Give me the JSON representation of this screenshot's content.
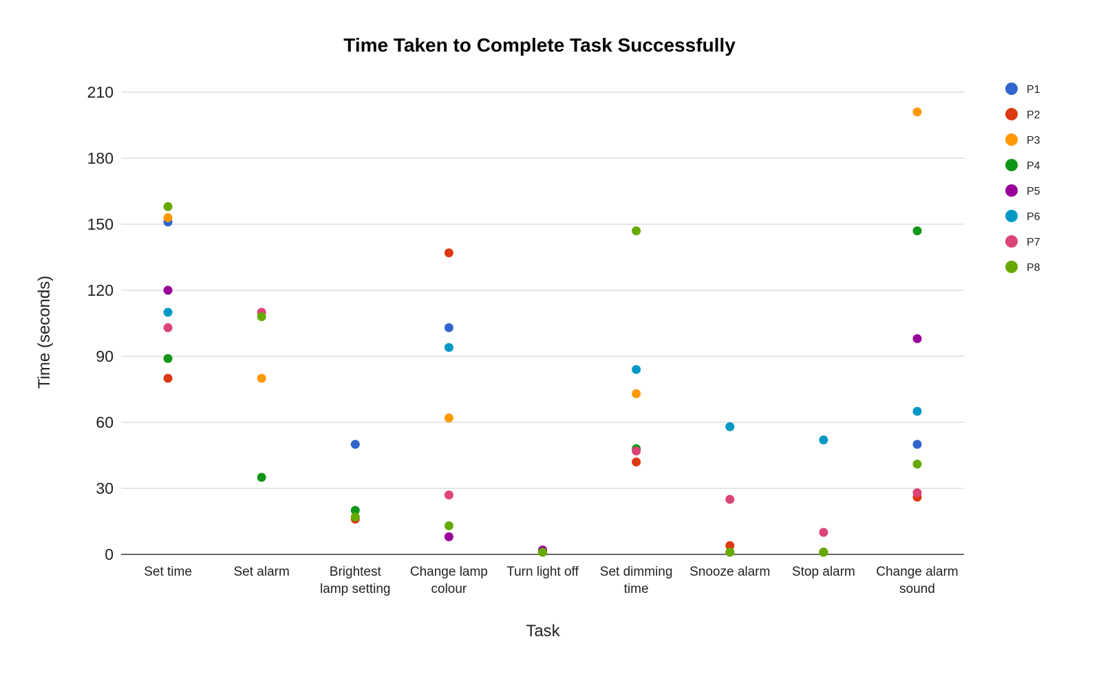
{
  "chart_data": {
    "type": "scatter",
    "title": "Time Taken to Complete Task Successfully",
    "xlabel": "Task",
    "ylabel": "Time (seconds)",
    "ylim": [
      0,
      210
    ],
    "yticks": [
      0,
      30,
      60,
      90,
      120,
      150,
      180,
      210
    ],
    "grid": true,
    "legend_position": "right",
    "categories": [
      [
        "Set time"
      ],
      [
        "Set alarm"
      ],
      [
        "Brightest",
        "lamp setting"
      ],
      [
        "Change lamp",
        "colour"
      ],
      [
        "Turn light off"
      ],
      [
        "Set dimming",
        "time"
      ],
      [
        "Snooze alarm"
      ],
      [
        "Stop alarm"
      ],
      [
        "Change alarm",
        "sound"
      ]
    ],
    "series": [
      {
        "name": "P1",
        "color": "#3366cc",
        "values": [
          151,
          null,
          50,
          103,
          1,
          null,
          null,
          null,
          50
        ]
      },
      {
        "name": "P2",
        "color": "#dc3912",
        "values": [
          80,
          null,
          16,
          137,
          1,
          42,
          4,
          1,
          26
        ]
      },
      {
        "name": "P3",
        "color": "#ff9900",
        "values": [
          153,
          80,
          null,
          62,
          1,
          73,
          1,
          1,
          201
        ]
      },
      {
        "name": "P4",
        "color": "#109618",
        "values": [
          89,
          35,
          20,
          null,
          1,
          48,
          1,
          1,
          147
        ]
      },
      {
        "name": "P5",
        "color": "#990099",
        "values": [
          120,
          null,
          null,
          8,
          2,
          null,
          null,
          null,
          98
        ]
      },
      {
        "name": "P6",
        "color": "#0099c6",
        "values": [
          110,
          null,
          null,
          94,
          null,
          84,
          58,
          52,
          65
        ]
      },
      {
        "name": "P7",
        "color": "#dd4477",
        "values": [
          103,
          110,
          null,
          27,
          null,
          47,
          25,
          10,
          28
        ]
      },
      {
        "name": "P8",
        "color": "#66aa00",
        "values": [
          158,
          108,
          17,
          13,
          1,
          147,
          1,
          1,
          41
        ]
      }
    ]
  }
}
